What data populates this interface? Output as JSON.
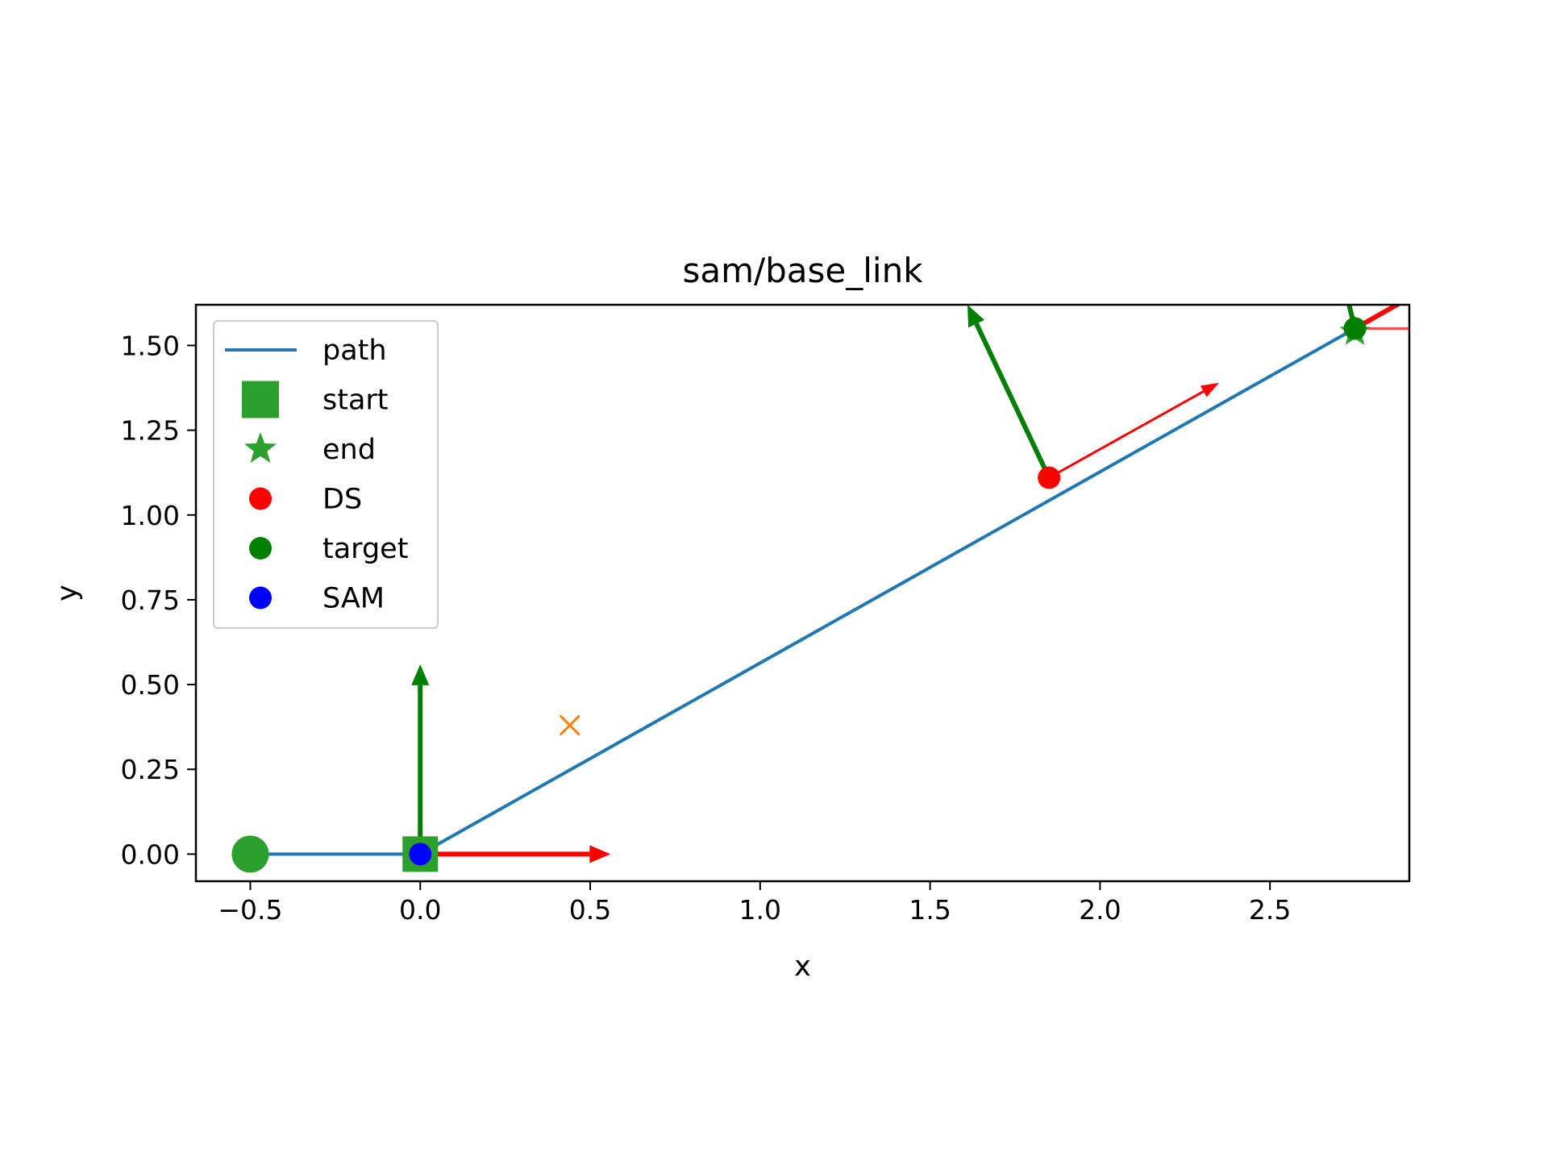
{
  "chart_data": {
    "type": "line",
    "title": "sam/base_link",
    "xlabel": "x",
    "ylabel": "y",
    "xlim": [
      -0.66,
      2.91
    ],
    "ylim": [
      -0.08,
      1.62
    ],
    "xticks": [
      -0.5,
      0.0,
      0.5,
      1.0,
      1.5,
      2.0,
      2.5
    ],
    "xtick_labels": [
      "−0.5",
      "0.0",
      "0.5",
      "1.0",
      "1.5",
      "2.0",
      "2.5"
    ],
    "yticks": [
      0.0,
      0.25,
      0.5,
      0.75,
      1.0,
      1.25,
      1.5
    ],
    "ytick_labels": [
      "0.00",
      "0.25",
      "0.50",
      "0.75",
      "1.00",
      "1.25",
      "1.50"
    ],
    "grid": false,
    "legend_position": "top-left",
    "series": [
      {
        "name": "path",
        "kind": "line",
        "color": "#1f77b4",
        "x": [
          -0.5,
          0.0,
          2.75
        ],
        "y": [
          0.0,
          0.0,
          1.55
        ]
      },
      {
        "name": "start",
        "kind": "marker",
        "marker": "square",
        "color": "#2ca02c",
        "x": [
          0.0
        ],
        "y": [
          0.0
        ]
      },
      {
        "name": "end",
        "kind": "marker",
        "marker": "star",
        "color": "#2ca02c",
        "x": [
          2.75
        ],
        "y": [
          1.54
        ]
      },
      {
        "name": "DS",
        "kind": "marker",
        "marker": "circle",
        "color": "#ff0000",
        "x": [
          1.85
        ],
        "y": [
          1.11
        ]
      },
      {
        "name": "target",
        "kind": "marker",
        "marker": "circle",
        "color": "#008000",
        "x": [
          2.75
        ],
        "y": [
          1.55
        ]
      },
      {
        "name": "SAM",
        "kind": "marker",
        "marker": "circle",
        "color": "#0000ff",
        "x": [
          0.0
        ],
        "y": [
          0.0
        ]
      }
    ],
    "extra_points": [
      {
        "marker": "big-circle",
        "color": "#2ca02c",
        "x": -0.5,
        "y": 0.0
      },
      {
        "marker": "x",
        "color": "#ff7f0e",
        "x": 0.44,
        "y": 0.38
      }
    ],
    "arrows": [
      {
        "color": "#ff0000",
        "x": 0.0,
        "y": 0.0,
        "dx": 0.56,
        "dy": 0.0,
        "width": "thick"
      },
      {
        "color": "#008000",
        "x": 0.0,
        "y": 0.0,
        "dx": 0.0,
        "dy": 0.56,
        "width": "thick"
      },
      {
        "color": "#ff0000",
        "x": 1.85,
        "y": 1.11,
        "dx": 0.5,
        "dy": 0.28,
        "width": "thin"
      },
      {
        "color": "#008000",
        "x": 1.85,
        "y": 1.11,
        "dx": -0.24,
        "dy": 0.51,
        "width": "thick"
      },
      {
        "color": "#ff0000",
        "x": 2.75,
        "y": 1.55,
        "dx": 0.3,
        "dy": 0.17,
        "width": "thick"
      },
      {
        "color": "#008000",
        "x": 2.75,
        "y": 1.55,
        "dx": -0.05,
        "dy": 0.2,
        "width": "thick"
      },
      {
        "color": "#ff4d4d",
        "x": 2.75,
        "y": 1.55,
        "dx": 0.3,
        "dy": 0.0,
        "width": "thin"
      }
    ]
  }
}
